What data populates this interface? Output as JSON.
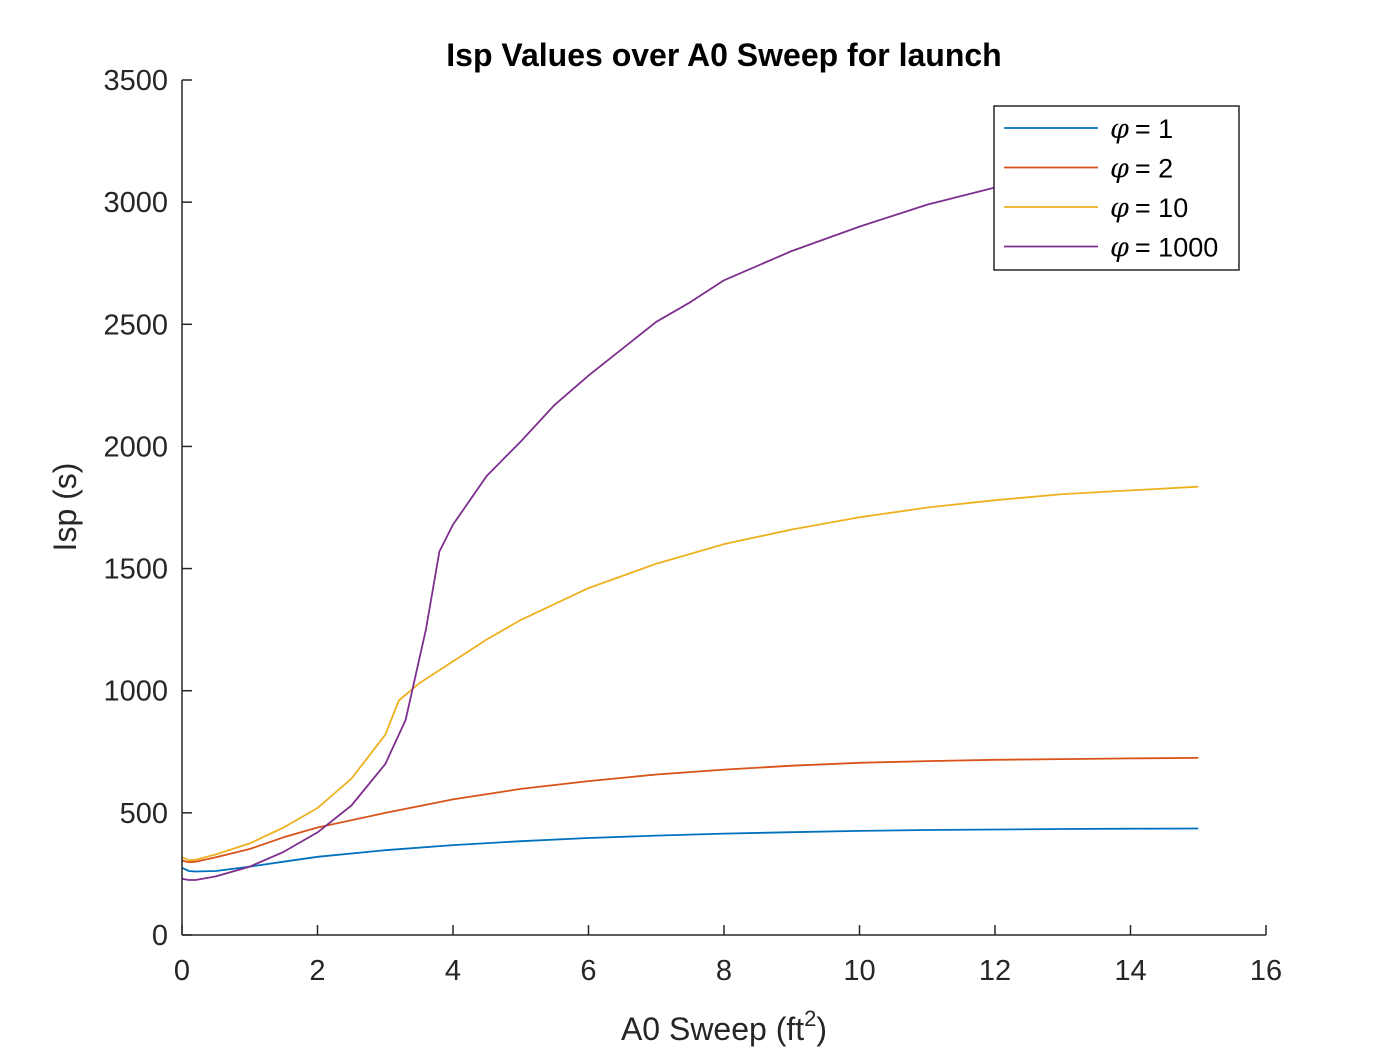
{
  "chart_data": {
    "type": "line",
    "title": "Isp Values over A0 Sweep for launch",
    "xlabel_text": "A0 Sweep (ft",
    "xlabel_sup": "2",
    "xlabel_close": ")",
    "ylabel": "Isp (s)",
    "xlim": [
      0,
      16
    ],
    "ylim": [
      0,
      3500
    ],
    "xticks": [
      0,
      2,
      4,
      6,
      8,
      10,
      12,
      14,
      16
    ],
    "yticks": [
      0,
      500,
      1000,
      1500,
      2000,
      2500,
      3000,
      3500
    ],
    "grid": false,
    "legend_position": "top-right",
    "legend_symbol": "φ",
    "series": [
      {
        "name": "= 1",
        "color": "#0072BD",
        "x": [
          0,
          0.1,
          0.2,
          0.5,
          1,
          1.5,
          2,
          3,
          4,
          5,
          6,
          7,
          8,
          9,
          10,
          11,
          12,
          13,
          14,
          15
        ],
        "y": [
          275,
          262,
          260,
          262,
          280,
          300,
          320,
          347,
          368,
          384,
          397,
          407,
          415,
          421,
          426,
          430,
          432,
          434,
          435,
          436
        ]
      },
      {
        "name": "= 2",
        "color": "#D95319",
        "x": [
          0,
          0.1,
          0.2,
          0.5,
          1,
          1.5,
          2,
          3,
          4,
          5,
          6,
          7,
          8,
          9,
          10,
          11,
          12,
          13,
          14,
          15
        ],
        "y": [
          305,
          298,
          300,
          318,
          352,
          400,
          440,
          500,
          555,
          598,
          630,
          657,
          677,
          693,
          705,
          712,
          717,
          720,
          723,
          725
        ]
      },
      {
        "name": "= 10",
        "color": "#EDB120",
        "x": [
          0,
          0.1,
          0.2,
          0.5,
          1,
          1.5,
          2,
          2.5,
          3,
          3.2,
          3.5,
          4,
          4.5,
          5,
          6,
          7,
          8,
          9,
          10,
          11,
          12,
          13,
          14,
          15
        ],
        "y": [
          318,
          306,
          308,
          330,
          375,
          440,
          520,
          640,
          820,
          960,
          1030,
          1120,
          1210,
          1290,
          1420,
          1520,
          1600,
          1660,
          1710,
          1750,
          1780,
          1805,
          1820,
          1835
        ]
      },
      {
        "name": "= 1000",
        "color": "#7E2F8E",
        "x": [
          0,
          0.1,
          0.2,
          0.5,
          1,
          1.5,
          2,
          2.5,
          3,
          3.3,
          3.6,
          3.8,
          4,
          4.5,
          5,
          5.5,
          6,
          6.5,
          7,
          7.5,
          8,
          9,
          10,
          11,
          12,
          13,
          14,
          15
        ],
        "y": [
          230,
          225,
          225,
          240,
          280,
          340,
          420,
          530,
          700,
          880,
          1250,
          1570,
          1680,
          1880,
          2020,
          2170,
          2290,
          2400,
          2510,
          2590,
          2680,
          2800,
          2900,
          2990,
          3060,
          3110,
          3150,
          3180
        ]
      }
    ]
  }
}
